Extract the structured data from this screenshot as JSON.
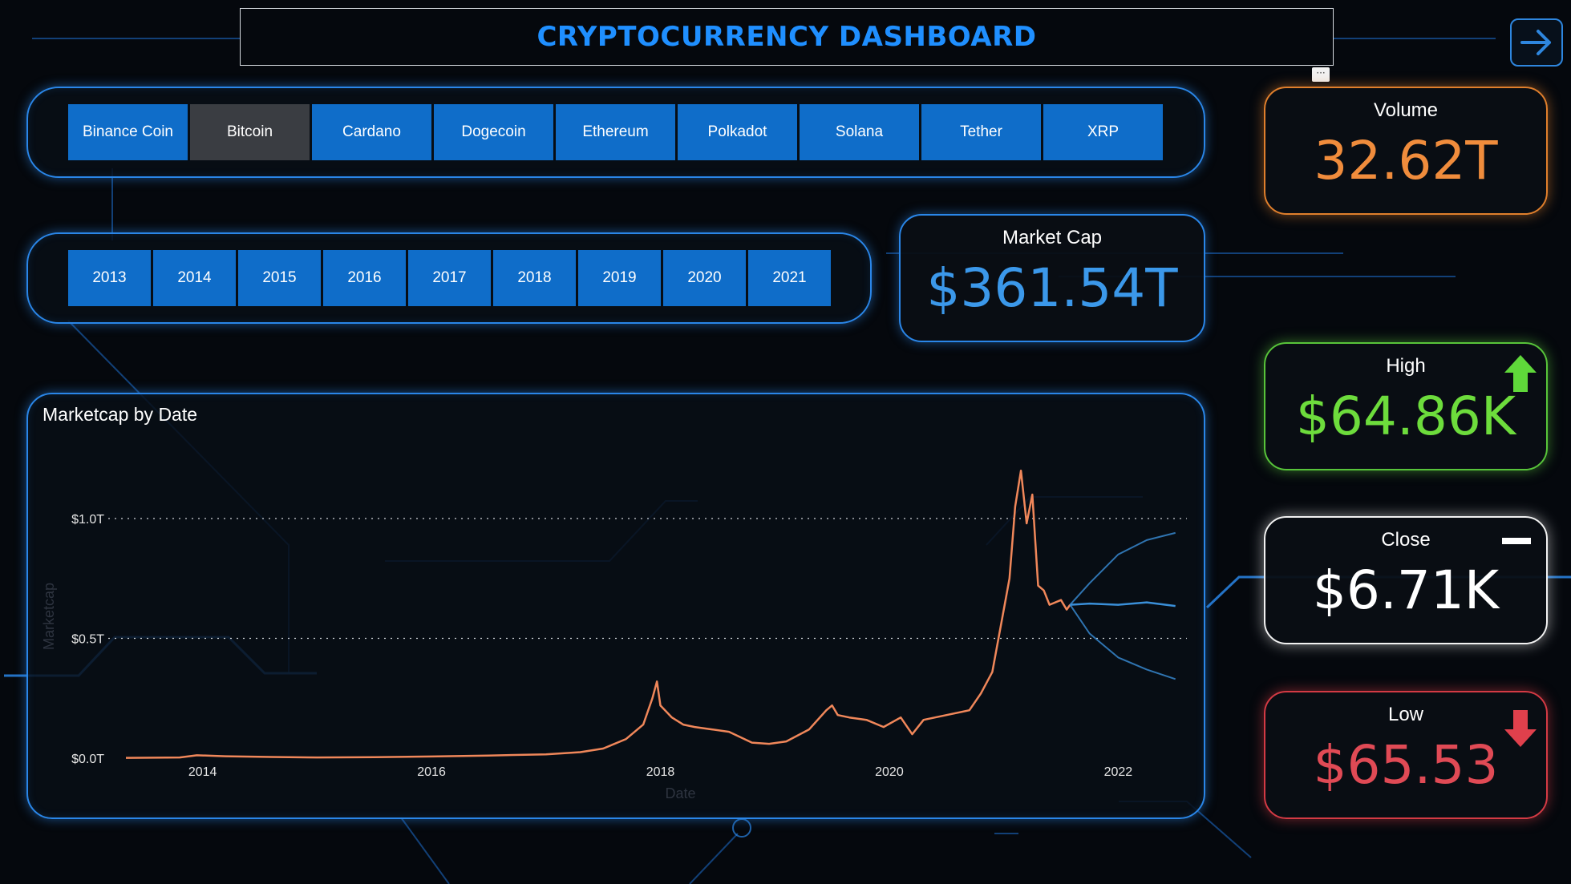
{
  "header": {
    "title": "CRYPTOCURRENCY DASHBOARD",
    "more_label": "···"
  },
  "coins": {
    "items": [
      "Binance Coin",
      "Bitcoin",
      "Cardano",
      "Dogecoin",
      "Ethereum",
      "Polkadot",
      "Solana",
      "Tether",
      "XRP"
    ],
    "selected": "Bitcoin"
  },
  "years": {
    "items": [
      "2013",
      "2014",
      "2015",
      "2016",
      "2017",
      "2018",
      "2019",
      "2020",
      "2021"
    ]
  },
  "cards": {
    "market_cap": {
      "label": "Market Cap",
      "value": "$361.54T"
    },
    "volume": {
      "label": "Volume",
      "value": "32.62T"
    },
    "high": {
      "label": "High",
      "value": "$64.86K"
    },
    "close": {
      "label": "Close",
      "value": "$6.71K"
    },
    "low": {
      "label": "Low",
      "value": "$65.53"
    }
  },
  "icons": {
    "nav": "arrow-right-icon",
    "high": "arrow-up-icon",
    "close": "dash-icon",
    "low": "arrow-down-icon"
  },
  "colors": {
    "accent": "#2a86e8",
    "volume": "#f08c3c",
    "high": "#6ddc3c",
    "low": "#e04a55",
    "series": "#f0875a",
    "forecast": "#3a8fd8"
  },
  "chart_data": {
    "type": "line",
    "title": "Marketcap by Date",
    "xlabel": "Date",
    "ylabel": "Marketcap",
    "y_ticks": [
      "$0.0T",
      "$0.5T",
      "$1.0T"
    ],
    "x_ticks": [
      "2014",
      "2016",
      "2018",
      "2020",
      "2022"
    ],
    "ylim": [
      0,
      1.0
    ],
    "y_unit": "T",
    "grid": true,
    "series": [
      {
        "x": [
          2013.33,
          2013.8,
          2013.95,
          2014.2,
          2014.6,
          2015.0,
          2015.5,
          2016.0,
          2016.5,
          2017.0,
          2017.3,
          2017.5,
          2017.7,
          2017.85,
          2017.93,
          2017.97,
          2018.0,
          2018.1,
          2018.2,
          2018.3,
          2018.45,
          2018.6,
          2018.8,
          2018.95,
          2019.1,
          2019.3,
          2019.45,
          2019.5,
          2019.55,
          2019.65,
          2019.8,
          2019.95,
          2020.1,
          2020.2,
          2020.3,
          2020.5,
          2020.7,
          2020.8,
          2020.9,
          2021.0,
          2021.05,
          2021.1,
          2021.15,
          2021.2,
          2021.25,
          2021.3,
          2021.35,
          2021.4,
          2021.5,
          2021.55,
          2021.58
        ],
        "values": [
          0.0015,
          0.003,
          0.012,
          0.008,
          0.005,
          0.003,
          0.004,
          0.007,
          0.011,
          0.016,
          0.025,
          0.04,
          0.08,
          0.14,
          0.25,
          0.32,
          0.22,
          0.17,
          0.14,
          0.13,
          0.12,
          0.11,
          0.065,
          0.06,
          0.07,
          0.12,
          0.2,
          0.22,
          0.18,
          0.17,
          0.16,
          0.13,
          0.17,
          0.1,
          0.16,
          0.18,
          0.2,
          0.27,
          0.36,
          0.62,
          0.75,
          1.05,
          1.2,
          0.98,
          1.1,
          0.72,
          0.7,
          0.64,
          0.66,
          0.62,
          0.64
        ]
      },
      {
        "name": "forecast",
        "x": [
          2021.58,
          2021.75,
          2022.0,
          2022.25,
          2022.5
        ],
        "values": [
          0.64,
          0.645,
          0.64,
          0.65,
          0.635
        ]
      },
      {
        "name": "forecast-upper",
        "x": [
          2021.58,
          2021.75,
          2022.0,
          2022.25,
          2022.5
        ],
        "values": [
          0.64,
          0.73,
          0.85,
          0.91,
          0.94
        ]
      },
      {
        "name": "forecast-lower",
        "x": [
          2021.58,
          2021.75,
          2022.0,
          2022.25,
          2022.5
        ],
        "values": [
          0.64,
          0.52,
          0.42,
          0.37,
          0.33
        ]
      }
    ]
  }
}
